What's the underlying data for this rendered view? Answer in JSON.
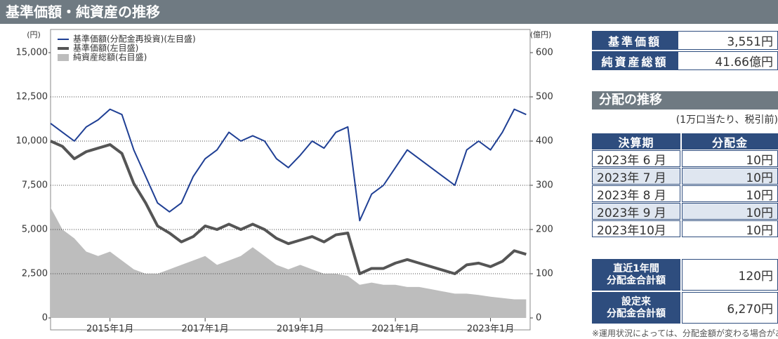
{
  "header": {
    "title": "基準価額・純資産の推移"
  },
  "chart_data": {
    "type": "line",
    "y_unit": "(円)",
    "y2_unit": "(億円)",
    "x": [
      "2013-10",
      "2014-01",
      "2014-04",
      "2014-07",
      "2014-10",
      "2015-01",
      "2015-04",
      "2015-07",
      "2015-10",
      "2016-01",
      "2016-04",
      "2016-07",
      "2016-10",
      "2017-01",
      "2017-04",
      "2017-07",
      "2017-10",
      "2018-01",
      "2018-04",
      "2018-07",
      "2018-10",
      "2019-01",
      "2019-04",
      "2019-07",
      "2019-10",
      "2020-01",
      "2020-04",
      "2020-07",
      "2020-10",
      "2021-01",
      "2021-04",
      "2021-07",
      "2021-10",
      "2022-01",
      "2022-04",
      "2022-07",
      "2022-10",
      "2023-01",
      "2023-04",
      "2023-07",
      "2023-10"
    ],
    "xlim": [
      "2013-10",
      "2023-11"
    ],
    "xticks": [
      {
        "value": "2015-01",
        "label": "2015年1月"
      },
      {
        "value": "2017-01",
        "label": "2017年1月"
      },
      {
        "value": "2019-01",
        "label": "2019年1月"
      },
      {
        "value": "2021-01",
        "label": "2021年1月"
      },
      {
        "value": "2023-01",
        "label": "2023年1月"
      }
    ],
    "ylim": [
      0,
      15000
    ],
    "yticks": [
      0,
      {
        "value": 2500,
        "label": "2,500"
      },
      {
        "value": 5000,
        "label": "5,000"
      },
      {
        "value": 7500,
        "label": "7,500"
      },
      {
        "value": 10000,
        "label": "10,000"
      },
      {
        "value": 12500,
        "label": "12,500"
      },
      {
        "value": 15000,
        "label": "15,000"
      }
    ],
    "y2lim": [
      0,
      600
    ],
    "y2ticks": [
      0,
      100,
      200,
      300,
      400,
      500,
      600
    ],
    "grid": true,
    "series": [
      {
        "name": "基準価額(分配金再投資)(左目盛)",
        "color": "#1f3f94",
        "values": [
          11000,
          10500,
          10000,
          10800,
          11200,
          11800,
          11500,
          9500,
          8000,
          6500,
          6000,
          6500,
          8000,
          9000,
          9500,
          10500,
          10000,
          10300,
          10000,
          9000,
          8500,
          9200,
          10000,
          9600,
          10500,
          10800,
          5500,
          7000,
          7500,
          8500,
          9500,
          9000,
          8500,
          8000,
          7500,
          9500,
          10000,
          9500,
          10500,
          11800,
          11500
        ]
      },
      {
        "name": "基準価額(左目盛)",
        "color": "#555555",
        "values": [
          10000,
          9700,
          9000,
          9400,
          9600,
          9800,
          9300,
          7600,
          6500,
          5200,
          4800,
          4300,
          4600,
          5200,
          5000,
          5300,
          5000,
          5300,
          5000,
          4500,
          4200,
          4400,
          4600,
          4300,
          4700,
          4800,
          2500,
          2800,
          2800,
          3100,
          3300,
          3100,
          2900,
          2700,
          2500,
          3000,
          3100,
          2900,
          3200,
          3800,
          3600
        ]
      },
      {
        "name": "純資産総額(右目盛)",
        "color": "#bdbdbd",
        "axis": "y2",
        "values": [
          250,
          200,
          180,
          150,
          140,
          150,
          130,
          110,
          100,
          100,
          110,
          120,
          130,
          140,
          120,
          130,
          140,
          160,
          140,
          120,
          110,
          120,
          110,
          100,
          100,
          95,
          75,
          80,
          75,
          75,
          70,
          70,
          65,
          60,
          55,
          55,
          52,
          48,
          45,
          42,
          42
        ]
      }
    ]
  },
  "summary": [
    {
      "label": "基準価額",
      "value": "3,551円"
    },
    {
      "label": "純資産総額",
      "value": "41.66億円"
    }
  ],
  "dividends": {
    "title": "分配の推移",
    "note": "(1万口当たり、税引前)",
    "columns": [
      "決算期",
      "分配金"
    ],
    "rows": [
      [
        "2023年 6 月",
        "10円"
      ],
      [
        "2023年 7 月",
        "10円"
      ],
      [
        "2023年 8 月",
        "10円"
      ],
      [
        "2023年 9 月",
        "10円"
      ],
      [
        "2023年10月",
        "10円"
      ]
    ],
    "totals": [
      {
        "label": "直近1年間\n分配金合計額",
        "value": "120円"
      },
      {
        "label": "設定来\n分配金合計額",
        "value": "6,270円"
      }
    ]
  },
  "footnote": "※運用状況によっては、分配金額が変わる場合があります。"
}
